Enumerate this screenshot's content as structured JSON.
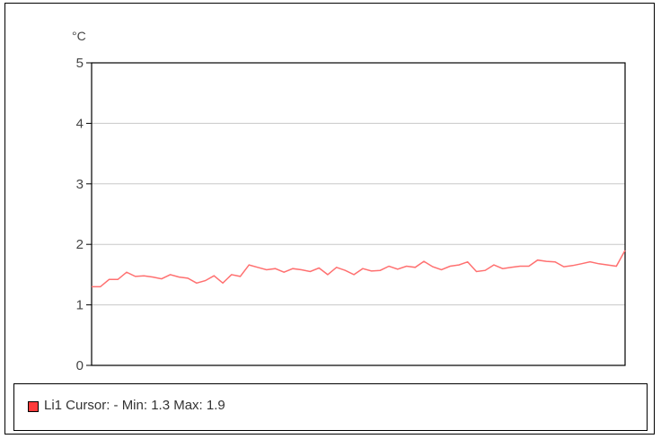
{
  "chart_data": {
    "type": "line",
    "ylabel": "°C",
    "ylim": [
      0,
      5
    ],
    "yticks": [
      "0",
      "1",
      "2",
      "3",
      "4",
      "5"
    ],
    "grid": true,
    "legend_placement": "bottom",
    "series": [
      {
        "name": "Li1",
        "color": "#ff7070",
        "values": [
          1.3,
          1.3,
          1.42,
          1.42,
          1.54,
          1.47,
          1.48,
          1.46,
          1.43,
          1.5,
          1.46,
          1.44,
          1.36,
          1.4,
          1.48,
          1.36,
          1.5,
          1.47,
          1.66,
          1.62,
          1.58,
          1.6,
          1.54,
          1.6,
          1.58,
          1.55,
          1.61,
          1.5,
          1.62,
          1.57,
          1.5,
          1.6,
          1.56,
          1.57,
          1.64,
          1.59,
          1.64,
          1.62,
          1.72,
          1.63,
          1.58,
          1.64,
          1.66,
          1.71,
          1.55,
          1.57,
          1.66,
          1.6,
          1.62,
          1.64,
          1.64,
          1.74,
          1.72,
          1.71,
          1.63,
          1.65,
          1.68,
          1.71,
          1.68,
          1.66,
          1.64,
          1.9
        ]
      }
    ]
  },
  "legend": {
    "swatch_color": "#ff3b3b",
    "text": "Li1 Cursor: - Min: 1.3 Max: 1.9"
  }
}
